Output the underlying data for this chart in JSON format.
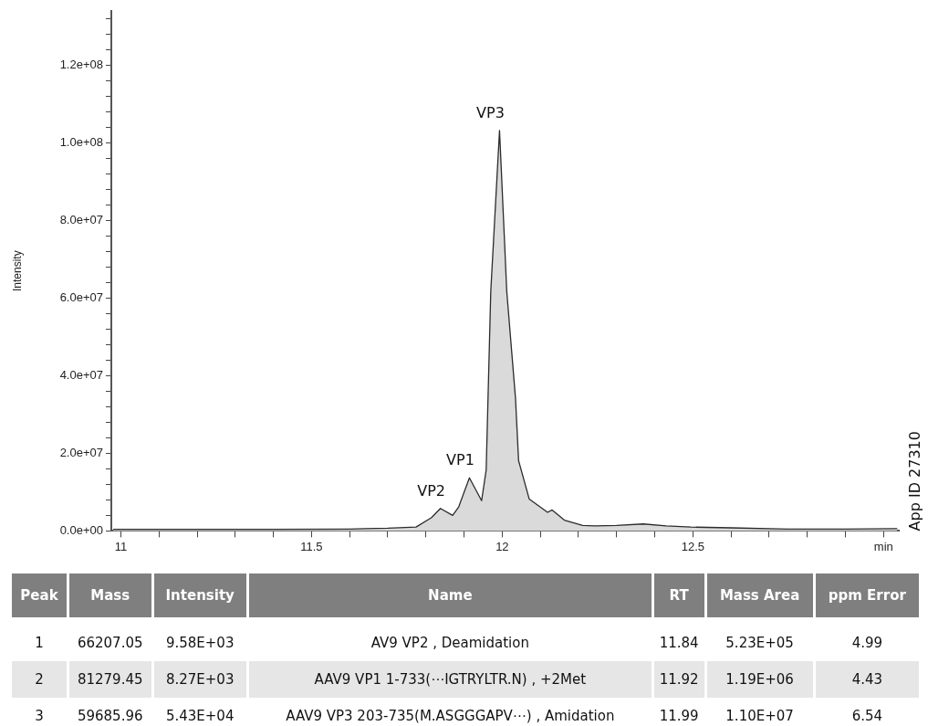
{
  "chart_data": [
    {
      "type": "area",
      "ylabel": "Intensity",
      "xlim": [
        10.975,
        13.04
      ],
      "ylim": [
        0,
        134000000
      ],
      "xticks": [
        11,
        {
          "value": 11.1,
          "label": null
        },
        {
          "value": 11.2,
          "label": null
        },
        {
          "value": 11.3,
          "label": null
        },
        {
          "value": 11.4,
          "label": null
        },
        11.5,
        {
          "value": 11.6,
          "label": null
        },
        {
          "value": 11.7,
          "label": null
        },
        {
          "value": 11.8,
          "label": null
        },
        {
          "value": 11.9,
          "label": null
        },
        12,
        {
          "value": 12.1,
          "label": null
        },
        {
          "value": 12.2,
          "label": null
        },
        {
          "value": 12.3,
          "label": null
        },
        {
          "value": 12.4,
          "label": null
        },
        12.5,
        {
          "value": 12.6,
          "label": null
        },
        {
          "value": 12.7,
          "label": null
        },
        {
          "value": 12.8,
          "label": null
        },
        {
          "value": 12.9,
          "label": null
        },
        {
          "value": 13,
          "label": "min"
        }
      ],
      "yticks": [
        {
          "value": 0,
          "label": "0.0e+00"
        },
        {
          "value": 4000000,
          "label": null
        },
        {
          "value": 8000000,
          "label": null
        },
        {
          "value": 12000000,
          "label": null
        },
        {
          "value": 16000000,
          "label": null
        },
        {
          "value": 20000000,
          "label": "2.0e+07"
        },
        {
          "value": 24000000,
          "label": null
        },
        {
          "value": 28000000,
          "label": null
        },
        {
          "value": 32000000,
          "label": null
        },
        {
          "value": 36000000,
          "label": null
        },
        {
          "value": 40000000,
          "label": "4.0e+07"
        },
        {
          "value": 44000000,
          "label": null
        },
        {
          "value": 48000000,
          "label": null
        },
        {
          "value": 52000000,
          "label": null
        },
        {
          "value": 56000000,
          "label": null
        },
        {
          "value": 60000000,
          "label": "6.0e+07"
        },
        {
          "value": 64000000,
          "label": null
        },
        {
          "value": 68000000,
          "label": null
        },
        {
          "value": 72000000,
          "label": null
        },
        {
          "value": 76000000,
          "label": null
        },
        {
          "value": 80000000,
          "label": "8.0e+07"
        },
        {
          "value": 84000000,
          "label": null
        },
        {
          "value": 88000000,
          "label": null
        },
        {
          "value": 92000000,
          "label": null
        },
        {
          "value": 96000000,
          "label": null
        },
        {
          "value": 100000000,
          "label": "1.0e+08"
        },
        {
          "value": 104000000,
          "label": null
        },
        {
          "value": 108000000,
          "label": null
        },
        {
          "value": 112000000,
          "label": null
        },
        {
          "value": 116000000,
          "label": null
        },
        {
          "value": 120000000,
          "label": "1.2e+08"
        },
        {
          "value": 124000000,
          "label": null
        },
        {
          "value": 128000000,
          "label": null
        },
        {
          "value": 132000000,
          "label": null
        }
      ],
      "grid": false,
      "legend": false,
      "marker": "none",
      "line_style": "solid",
      "x": [
        10.98,
        11.2,
        11.4,
        11.6,
        11.642,
        11.7,
        11.774,
        11.814,
        11.838,
        11.87,
        11.886,
        11.914,
        11.946,
        11.958,
        11.97,
        11.993,
        12.012,
        12.035,
        12.043,
        12.071,
        12.119,
        12.131,
        12.163,
        12.211,
        12.243,
        12.3,
        12.37,
        12.43,
        12.495,
        12.6,
        12.748,
        12.9,
        13.036
      ],
      "series": [
        {
          "color": "#dadada",
          "values": [
            400000,
            400000,
            400000,
            500000,
            600000,
            700000,
            1000000,
            3400000,
            5800000,
            4000000,
            6200000,
            13700000,
            7800000,
            15700000,
            61700000,
            103200000,
            61700000,
            34000000,
            18100000,
            8200000,
            4800000,
            5400000,
            2800000,
            1400000,
            1300000,
            1400000,
            1800000,
            1300000,
            1000000,
            800000,
            500000,
            500000,
            600000
          ]
        }
      ],
      "annotations": [
        {
          "text": "VP2",
          "x": 11.838,
          "y": 5800000
        },
        {
          "text": "VP1",
          "x": 11.914,
          "y": 13700000
        },
        {
          "text": "VP3",
          "x": 11.993,
          "y": 103200000
        },
        "App ID 27310"
      ]
    },
    {
      "type": "other",
      "categories": [
        "Peak",
        "Mass",
        "Intensity",
        "Name",
        "RT",
        "Mass Area",
        "ppm Error"
      ],
      "cell_labels": [
        [
          "1",
          "66207.05",
          "9.58E+03",
          "AV9 VP2 , Deamidation",
          "11.84",
          "5.23E+05",
          "4.99"
        ],
        [
          "2",
          "81279.45",
          "8.27E+03",
          "AAV9 VP1 1-733(⋯IGTRYLTR.N) , +2Met",
          "11.92",
          "1.19E+06",
          "4.43"
        ],
        [
          "3",
          "59685.96",
          "5.43E+04",
          "AAV9 VP3 203-735(M.ASGGGAPV⋯) , Amidation",
          "11.99",
          "1.10E+07",
          "6.54"
        ]
      ]
    }
  ]
}
